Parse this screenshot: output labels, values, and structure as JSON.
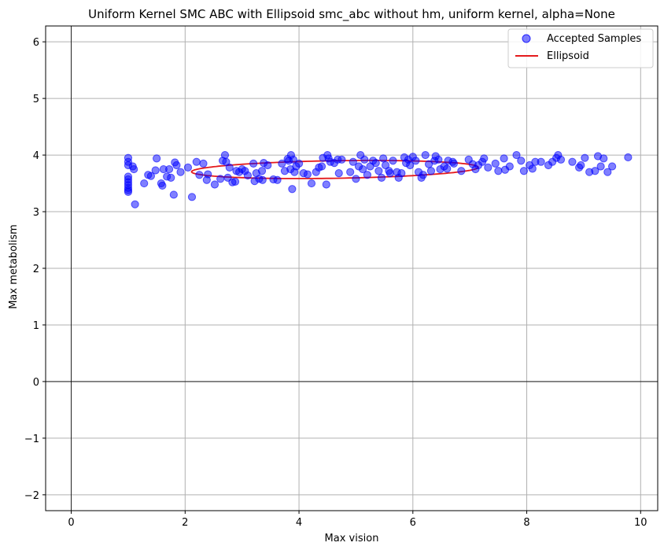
{
  "chart_data": {
    "type": "scatter",
    "title": "Uniform Kernel SMC ABC with Ellipsoid smc_abc without hm, uniform kernel, alpha=None",
    "xlabel": "Max vision",
    "ylabel": "Max metabolism",
    "xlim": [
      -0.45,
      10.3
    ],
    "ylim": [
      -2.28,
      6.28
    ],
    "xticks": [
      0,
      2,
      4,
      6,
      8,
      10
    ],
    "yticks": [
      -2,
      -1,
      0,
      1,
      2,
      3,
      4,
      5,
      6
    ],
    "xtick_labels": [
      "0",
      "2",
      "4",
      "6",
      "8",
      "10"
    ],
    "ytick_labels": [
      "−2",
      "−1",
      "0",
      "1",
      "2",
      "3",
      "4",
      "5",
      "6"
    ],
    "grid": true,
    "legend_position": "top-right",
    "legend": [
      "Accepted Samples",
      "Ellipsoid"
    ],
    "colors": {
      "points": "#0000ff",
      "ellipse": "#e41a1c",
      "grid": "#b0b0b0"
    },
    "series": [
      {
        "name": "Accepted Samples",
        "type": "scatter",
        "points": [
          [
            1.0,
            3.95
          ],
          [
            1.0,
            3.88
          ],
          [
            1.0,
            3.82
          ],
          [
            1.0,
            3.62
          ],
          [
            1.0,
            3.57
          ],
          [
            1.0,
            3.52
          ],
          [
            1.0,
            3.47
          ],
          [
            1.0,
            3.42
          ],
          [
            1.0,
            3.38
          ],
          [
            1.0,
            3.35
          ],
          [
            1.08,
            3.8
          ],
          [
            1.1,
            3.75
          ],
          [
            1.12,
            3.13
          ],
          [
            1.28,
            3.5
          ],
          [
            1.35,
            3.65
          ],
          [
            1.4,
            3.63
          ],
          [
            1.48,
            3.73
          ],
          [
            1.5,
            3.94
          ],
          [
            1.58,
            3.5
          ],
          [
            1.6,
            3.46
          ],
          [
            1.62,
            3.75
          ],
          [
            1.68,
            3.62
          ],
          [
            1.72,
            3.75
          ],
          [
            1.75,
            3.6
          ],
          [
            1.8,
            3.3
          ],
          [
            1.82,
            3.87
          ],
          [
            1.85,
            3.82
          ],
          [
            1.92,
            3.7
          ],
          [
            2.05,
            3.78
          ],
          [
            2.12,
            3.26
          ],
          [
            2.2,
            3.88
          ],
          [
            2.25,
            3.65
          ],
          [
            2.32,
            3.85
          ],
          [
            2.38,
            3.56
          ],
          [
            2.4,
            3.66
          ],
          [
            2.52,
            3.48
          ],
          [
            2.62,
            3.58
          ],
          [
            2.66,
            3.9
          ],
          [
            2.7,
            4.0
          ],
          [
            2.72,
            3.88
          ],
          [
            2.75,
            3.6
          ],
          [
            2.78,
            3.78
          ],
          [
            2.83,
            3.52
          ],
          [
            2.88,
            3.53
          ],
          [
            2.9,
            3.72
          ],
          [
            2.95,
            3.7
          ],
          [
            3.0,
            3.75
          ],
          [
            3.05,
            3.72
          ],
          [
            3.1,
            3.64
          ],
          [
            3.2,
            3.85
          ],
          [
            3.22,
            3.54
          ],
          [
            3.25,
            3.68
          ],
          [
            3.3,
            3.58
          ],
          [
            3.35,
            3.72
          ],
          [
            3.36,
            3.56
          ],
          [
            3.38,
            3.86
          ],
          [
            3.45,
            3.82
          ],
          [
            3.55,
            3.57
          ],
          [
            3.62,
            3.56
          ],
          [
            3.7,
            3.85
          ],
          [
            3.75,
            3.72
          ],
          [
            3.8,
            3.93
          ],
          [
            3.82,
            3.9
          ],
          [
            3.85,
            3.75
          ],
          [
            3.86,
            4.0
          ],
          [
            3.88,
            3.4
          ],
          [
            3.9,
            3.92
          ],
          [
            3.92,
            3.7
          ],
          [
            3.95,
            3.8
          ],
          [
            4.0,
            3.85
          ],
          [
            4.08,
            3.68
          ],
          [
            4.15,
            3.66
          ],
          [
            4.22,
            3.5
          ],
          [
            4.3,
            3.7
          ],
          [
            4.35,
            3.78
          ],
          [
            4.4,
            3.8
          ],
          [
            4.42,
            3.95
          ],
          [
            4.48,
            3.48
          ],
          [
            4.5,
            4.0
          ],
          [
            4.52,
            3.94
          ],
          [
            4.55,
            3.88
          ],
          [
            4.62,
            3.86
          ],
          [
            4.68,
            3.92
          ],
          [
            4.7,
            3.68
          ],
          [
            4.75,
            3.92
          ],
          [
            4.9,
            3.7
          ],
          [
            4.95,
            3.88
          ],
          [
            5.0,
            3.58
          ],
          [
            5.05,
            3.8
          ],
          [
            5.08,
            4.0
          ],
          [
            5.12,
            3.75
          ],
          [
            5.15,
            3.92
          ],
          [
            5.2,
            3.65
          ],
          [
            5.25,
            3.8
          ],
          [
            5.3,
            3.9
          ],
          [
            5.35,
            3.86
          ],
          [
            5.4,
            3.72
          ],
          [
            5.45,
            3.6
          ],
          [
            5.48,
            3.94
          ],
          [
            5.52,
            3.82
          ],
          [
            5.58,
            3.72
          ],
          [
            5.6,
            3.68
          ],
          [
            5.65,
            3.9
          ],
          [
            5.72,
            3.7
          ],
          [
            5.75,
            3.6
          ],
          [
            5.8,
            3.68
          ],
          [
            5.85,
            3.96
          ],
          [
            5.88,
            3.86
          ],
          [
            5.92,
            3.92
          ],
          [
            5.95,
            3.82
          ],
          [
            6.0,
            3.97
          ],
          [
            6.05,
            3.9
          ],
          [
            6.1,
            3.7
          ],
          [
            6.15,
            3.6
          ],
          [
            6.18,
            3.65
          ],
          [
            6.22,
            4.0
          ],
          [
            6.28,
            3.84
          ],
          [
            6.32,
            3.72
          ],
          [
            6.38,
            3.9
          ],
          [
            6.4,
            3.98
          ],
          [
            6.45,
            3.92
          ],
          [
            6.48,
            3.75
          ],
          [
            6.55,
            3.8
          ],
          [
            6.6,
            3.76
          ],
          [
            6.62,
            3.9
          ],
          [
            6.7,
            3.88
          ],
          [
            6.72,
            3.85
          ],
          [
            6.85,
            3.72
          ],
          [
            6.98,
            3.92
          ],
          [
            7.05,
            3.84
          ],
          [
            7.1,
            3.75
          ],
          [
            7.15,
            3.82
          ],
          [
            7.22,
            3.88
          ],
          [
            7.25,
            3.94
          ],
          [
            7.32,
            3.78
          ],
          [
            7.45,
            3.85
          ],
          [
            7.5,
            3.72
          ],
          [
            7.6,
            3.94
          ],
          [
            7.62,
            3.74
          ],
          [
            7.7,
            3.8
          ],
          [
            7.82,
            4.0
          ],
          [
            7.9,
            3.9
          ],
          [
            7.95,
            3.72
          ],
          [
            8.05,
            3.82
          ],
          [
            8.1,
            3.76
          ],
          [
            8.15,
            3.88
          ],
          [
            8.25,
            3.88
          ],
          [
            8.38,
            3.82
          ],
          [
            8.45,
            3.88
          ],
          [
            8.52,
            3.95
          ],
          [
            8.55,
            4.0
          ],
          [
            8.6,
            3.92
          ],
          [
            8.8,
            3.88
          ],
          [
            8.92,
            3.78
          ],
          [
            8.95,
            3.82
          ],
          [
            9.02,
            3.95
          ],
          [
            9.1,
            3.7
          ],
          [
            9.2,
            3.72
          ],
          [
            9.25,
            3.98
          ],
          [
            9.3,
            3.8
          ],
          [
            9.35,
            3.94
          ],
          [
            9.42,
            3.7
          ],
          [
            9.5,
            3.8
          ],
          [
            9.78,
            3.96
          ]
        ]
      },
      {
        "name": "Ellipsoid",
        "type": "line",
        "ellipse": {
          "center": [
            4.63,
            3.745
          ],
          "semi_x": 2.52,
          "semi_y": 0.155,
          "tilt_deg": 3.0
        }
      }
    ]
  }
}
